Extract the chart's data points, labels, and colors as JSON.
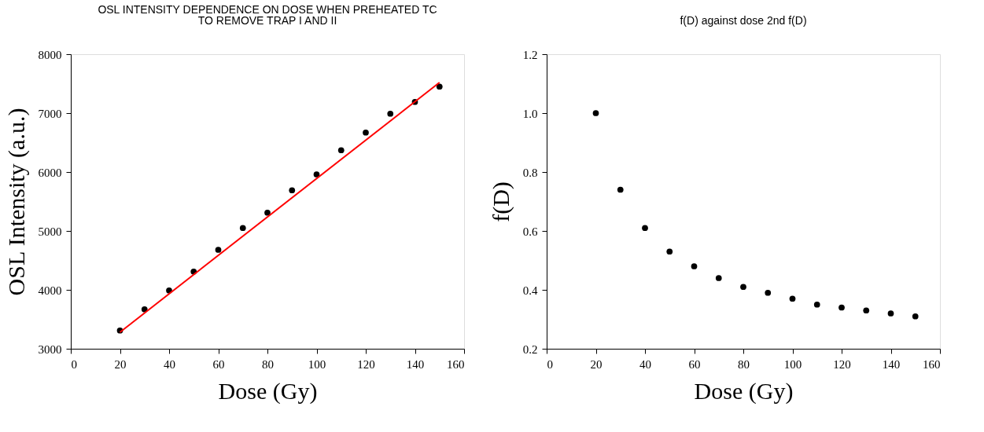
{
  "chart_data": [
    {
      "type": "scatter",
      "title": "OSL INTENSITY DEPENDENCE ON DOSE WHEN PREHEATED TC",
      "subtitle": "TO REMOVE TRAP I AND II",
      "xlabel": "Dose (Gy)",
      "ylabel": "OSL Intensity (a.u.)",
      "x": [
        20,
        30,
        40,
        50,
        60,
        70,
        80,
        90,
        100,
        110,
        120,
        130,
        140,
        150
      ],
      "series": [
        {
          "color": "#000000",
          "values": [
            3310,
            3670,
            3990,
            4310,
            4680,
            5050,
            5310,
            5690,
            5960,
            6370,
            6670,
            6990,
            7190,
            7450
          ]
        },
        {
          "type": "line",
          "marker": "none",
          "color": "#ff0000",
          "x": [
            20,
            150
          ],
          "values": [
            3280,
            7520
          ]
        }
      ],
      "xlim": [
        0,
        160
      ],
      "xticks": [
        0,
        20,
        40,
        60,
        80,
        100,
        120,
        140,
        160
      ],
      "ylim": [
        3000,
        8000
      ],
      "yticks": [
        3000,
        4000,
        5000,
        6000,
        7000,
        8000
      ],
      "grid": false,
      "marker": "circle"
    },
    {
      "type": "scatter",
      "title": "f(D) against dose 2nd f(D)",
      "xlabel": "Dose (Gy)",
      "ylabel": "f(D)",
      "x": [
        20,
        30,
        40,
        50,
        60,
        70,
        80,
        90,
        100,
        110,
        120,
        130,
        140,
        150
      ],
      "series": [
        {
          "color": "#000000",
          "values": [
            1.0,
            0.74,
            0.61,
            0.53,
            0.48,
            0.44,
            0.41,
            0.39,
            0.37,
            0.35,
            0.34,
            0.33,
            0.32,
            0.31
          ]
        }
      ],
      "xlim": [
        0,
        160
      ],
      "xticks": [
        0,
        20,
        40,
        60,
        80,
        100,
        120,
        140,
        160
      ],
      "ylim": [
        0.2,
        1.2
      ],
      "yticks": [
        0.2,
        0.4,
        0.6,
        0.8,
        {
          "value": 1.0,
          "label": "1.0"
        },
        1.2
      ],
      "grid": false,
      "marker": "circle"
    }
  ]
}
